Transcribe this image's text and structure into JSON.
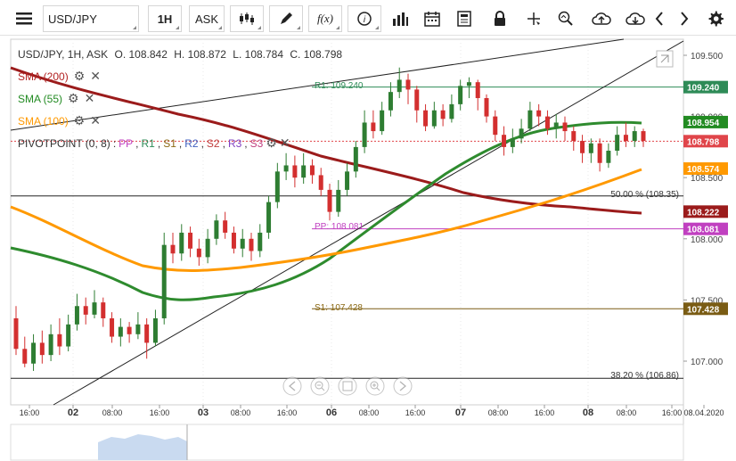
{
  "toolbar": {
    "symbol": "USD/JPY",
    "timeframe": "1H",
    "price_side": "ASK",
    "fx_label": "f(x)"
  },
  "header": {
    "instrument": "USD/JPY, 1H, ASK",
    "open": "O. 108.842",
    "high": "H. 108.872",
    "low": "L. 108.784",
    "close": "C. 108.798"
  },
  "indicators": [
    {
      "label": "SMA (200)",
      "color": "#b22222"
    },
    {
      "label": "SMA (55)",
      "color": "#228b22"
    },
    {
      "label": "SMA (100)",
      "color": "#ff9900"
    }
  ],
  "pivot": {
    "label": "PIVOTPOINT (0, 8)",
    "items": [
      {
        "text": "PP",
        "color": "#c040c0"
      },
      {
        "text": "R1",
        "color": "#2e8b57"
      },
      {
        "text": "S1",
        "color": "#8b6914"
      },
      {
        "text": "R2",
        "color": "#4060c0"
      },
      {
        "text": "S2",
        "color": "#c04040"
      },
      {
        "text": "R3",
        "color": "#8040c0"
      },
      {
        "text": "S3",
        "color": "#c04080"
      }
    ]
  },
  "price_axis": {
    "ticks": [
      "109.500",
      "109.000",
      "108.500",
      "108.000",
      "107.500",
      "107.000"
    ]
  },
  "price_tags": [
    {
      "text": "109.240",
      "bg": "#2e8b57"
    },
    {
      "text": "108.954",
      "bg": "#228b22"
    },
    {
      "text": "108.798",
      "bg": "#e0454a"
    },
    {
      "text": "108.574",
      "bg": "#ff9900"
    },
    {
      "text": "108.222",
      "bg": "#9b1b1b"
    },
    {
      "text": "108.081",
      "bg": "#c040c0"
    },
    {
      "text": "107.428",
      "bg": "#7a5c14"
    }
  ],
  "level_labels": {
    "r1": "R1: 109.240",
    "pp": "PP: 108.081",
    "s1": "S1: 107.428",
    "fib50": "50.00 % (108.35)",
    "fib38": "38.20 % (106.86)"
  },
  "time_axis": {
    "labels": [
      "16:00",
      "02",
      "08:00",
      "16:00",
      "03",
      "08:00",
      "16:00",
      "06",
      "08:00",
      "16:00",
      "07",
      "08:00",
      "16:00",
      "08",
      "08:00",
      "16:00",
      "08.04.2020"
    ]
  },
  "colors": {
    "up_candle": "#2e7d32",
    "down_candle": "#d32f2f",
    "sma200": "#9b1b1b",
    "sma55": "#2e8b2e",
    "sma100": "#ff9900"
  }
}
